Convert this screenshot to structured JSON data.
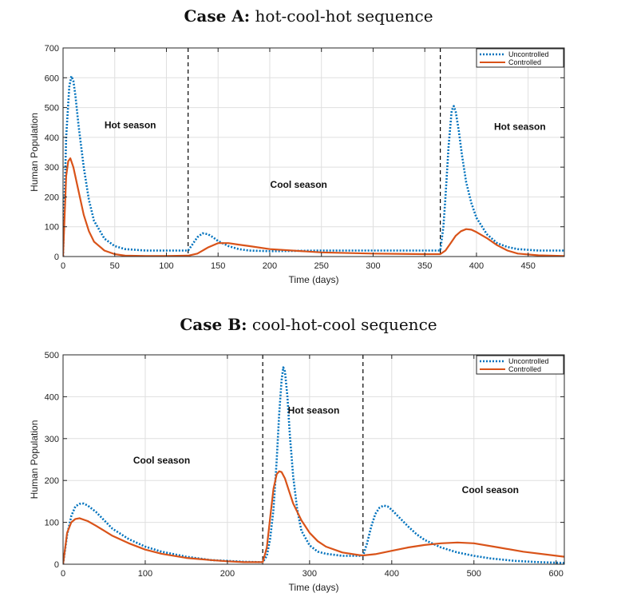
{
  "chart_data": [
    {
      "type": "line",
      "title_bold": "Case A:",
      "title_rest": " hot-cool-hot sequence",
      "xlabel": "Time (days)",
      "ylabel": "Human Population",
      "xlim": [
        0,
        485
      ],
      "ylim": [
        0,
        700
      ],
      "xticks": [
        0,
        50,
        100,
        150,
        200,
        250,
        300,
        350,
        400,
        450
      ],
      "yticks": [
        0,
        100,
        200,
        300,
        400,
        500,
        600,
        700
      ],
      "grid": true,
      "legend_position": "top-right",
      "season_boundaries": [
        121,
        365
      ],
      "annotations": [
        {
          "text": "Hot season",
          "x": 65,
          "y": 430
        },
        {
          "text": "Cool season",
          "x": 228,
          "y": 230
        },
        {
          "text": "Hot season",
          "x": 442,
          "y": 425
        }
      ],
      "series": [
        {
          "name": "Uncontrolled",
          "color": "#0072BD",
          "x": [
            0,
            3,
            6,
            8,
            10,
            12,
            15,
            20,
            25,
            30,
            40,
            50,
            60,
            80,
            100,
            120,
            121,
            125,
            130,
            135,
            140,
            145,
            150,
            160,
            170,
            180,
            200,
            250,
            300,
            350,
            364,
            365,
            368,
            370,
            373,
            376,
            378,
            380,
            383,
            386,
            390,
            395,
            400,
            410,
            420,
            430,
            440,
            460,
            485
          ],
          "y": [
            0,
            400,
            570,
            605,
            590,
            540,
            440,
            300,
            190,
            120,
            60,
            35,
            25,
            20,
            20,
            20,
            20,
            40,
            65,
            78,
            75,
            65,
            52,
            35,
            25,
            20,
            18,
            20,
            20,
            20,
            20,
            20,
            100,
            200,
            370,
            490,
            505,
            485,
            420,
            340,
            250,
            180,
            130,
            75,
            45,
            32,
            25,
            20,
            20
          ]
        },
        {
          "name": "Controlled",
          "color": "#D95319",
          "x": [
            0,
            3,
            5,
            7,
            10,
            15,
            20,
            25,
            30,
            40,
            50,
            60,
            80,
            100,
            120,
            121,
            130,
            140,
            150,
            160,
            170,
            180,
            200,
            250,
            300,
            350,
            364,
            365,
            370,
            375,
            380,
            385,
            390,
            395,
            400,
            410,
            420,
            430,
            440,
            460,
            485
          ],
          "y": [
            0,
            270,
            320,
            330,
            300,
            220,
            140,
            85,
            50,
            20,
            8,
            3,
            2,
            2,
            3,
            3,
            10,
            30,
            45,
            45,
            40,
            35,
            25,
            14,
            10,
            8,
            8,
            8,
            20,
            45,
            70,
            85,
            92,
            90,
            82,
            62,
            38,
            20,
            10,
            4,
            2
          ]
        }
      ]
    },
    {
      "type": "line",
      "title_bold": "Case B:",
      "title_rest": " cool-hot-cool sequence",
      "xlabel": "Time (days)",
      "ylabel": "Human Population",
      "xlim": [
        0,
        610
      ],
      "ylim": [
        0,
        500
      ],
      "xticks": [
        0,
        100,
        200,
        300,
        400,
        500,
        600
      ],
      "yticks": [
        0,
        100,
        200,
        300,
        400,
        500
      ],
      "grid": true,
      "legend_position": "top-right",
      "season_boundaries": [
        243,
        365
      ],
      "annotations": [
        {
          "text": "Cool season",
          "x": 120,
          "y": 240
        },
        {
          "text": "Hot season",
          "x": 305,
          "y": 360
        },
        {
          "text": "Cool season",
          "x": 520,
          "y": 170
        }
      ],
      "series": [
        {
          "name": "Uncontrolled",
          "color": "#0072BD",
          "x": [
            0,
            5,
            10,
            15,
            20,
            25,
            30,
            40,
            50,
            60,
            80,
            100,
            120,
            150,
            180,
            200,
            220,
            240,
            243,
            248,
            252,
            256,
            260,
            263,
            266,
            268,
            270,
            273,
            276,
            280,
            285,
            290,
            300,
            310,
            320,
            340,
            360,
            365,
            370,
            375,
            380,
            385,
            390,
            395,
            400,
            410,
            420,
            430,
            440,
            460,
            480,
            500,
            520,
            550,
            580,
            610
          ],
          "y": [
            0,
            70,
            115,
            138,
            144,
            145,
            140,
            125,
            105,
            85,
            60,
            42,
            30,
            18,
            10,
            8,
            6,
            5,
            5,
            20,
            60,
            130,
            250,
            360,
            440,
            470,
            460,
            400,
            310,
            210,
            130,
            80,
            45,
            30,
            25,
            20,
            20,
            20,
            50,
            90,
            120,
            135,
            140,
            138,
            130,
            110,
            90,
            72,
            58,
            40,
            28,
            20,
            14,
            8,
            5,
            3
          ]
        },
        {
          "name": "Controlled",
          "color": "#D95319",
          "x": [
            0,
            5,
            10,
            15,
            20,
            30,
            40,
            50,
            60,
            80,
            100,
            120,
            150,
            180,
            200,
            220,
            240,
            243,
            248,
            252,
            256,
            260,
            263,
            266,
            270,
            275,
            280,
            290,
            300,
            310,
            320,
            340,
            360,
            365,
            380,
            400,
            420,
            440,
            460,
            480,
            500,
            530,
            560,
            610
          ],
          "y": [
            0,
            75,
            100,
            108,
            110,
            103,
            92,
            80,
            68,
            50,
            35,
            25,
            15,
            10,
            7,
            5,
            5,
            5,
            40,
            110,
            180,
            215,
            222,
            220,
            205,
            175,
            145,
            105,
            75,
            55,
            42,
            28,
            22,
            21,
            24,
            32,
            40,
            46,
            50,
            52,
            50,
            40,
            30,
            18
          ]
        }
      ]
    }
  ]
}
